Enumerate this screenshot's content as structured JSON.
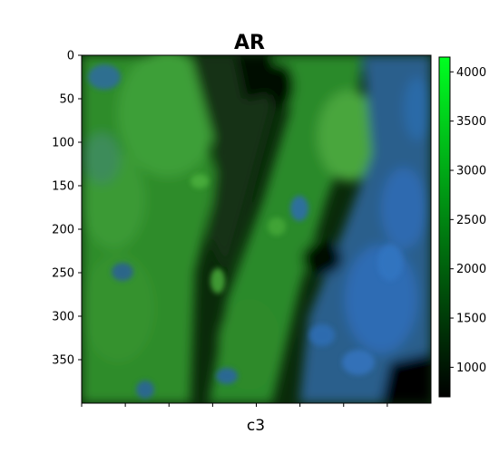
{
  "chart_data": {
    "type": "heatmap",
    "title": "AR",
    "xlabel": "c3",
    "ylabel": "",
    "image_extent": {
      "x": [
        0,
        400
      ],
      "y": [
        0,
        400
      ]
    },
    "y_ticks": [
      0,
      50,
      100,
      150,
      200,
      250,
      300,
      350
    ],
    "x_tick_count": 8,
    "x_tick_labels_shown": false,
    "colorbar": {
      "range": [
        700,
        4150
      ],
      "ticks": [
        1000,
        1500,
        2000,
        2500,
        3000,
        3500,
        4000
      ],
      "colormap": [
        "#000000",
        "#00ff21"
      ]
    },
    "channels": {
      "green": "#1fa61f",
      "blue": "#2a5fb0"
    },
    "grid": false
  }
}
